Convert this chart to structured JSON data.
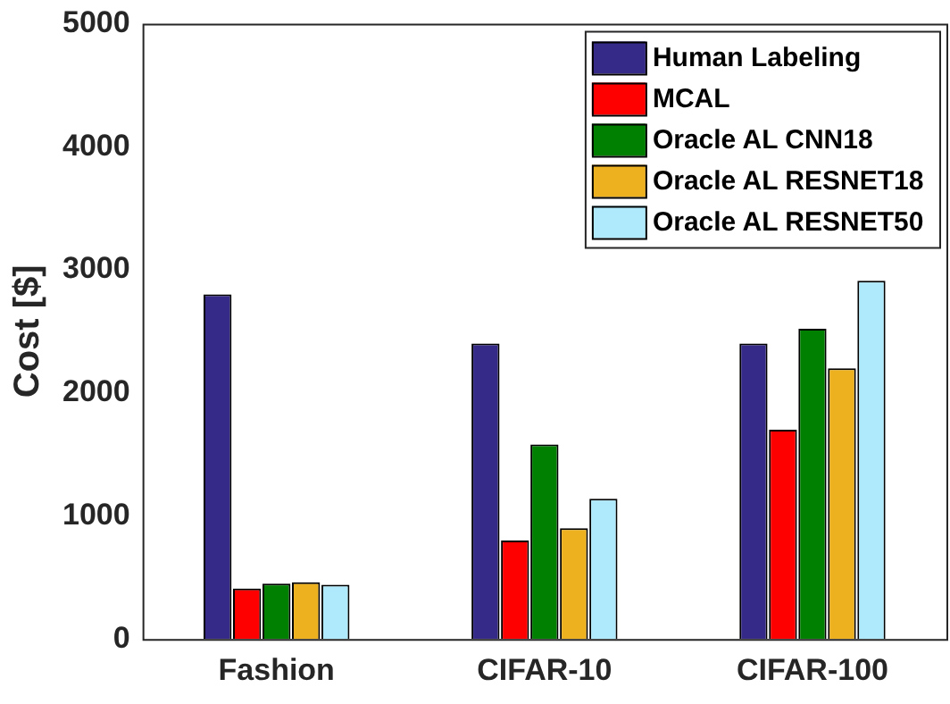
{
  "chart_data": {
    "type": "bar",
    "ylabel": "Cost [$]",
    "categories": [
      "Fashion",
      "CIFAR-10",
      "CIFAR-100"
    ],
    "series": [
      {
        "name": "Human Labeling",
        "color": "#352a87",
        "values": [
          2800,
          2400,
          2400
        ]
      },
      {
        "name": "MCAL",
        "color": "#ff0000",
        "values": [
          410,
          800,
          1700
        ]
      },
      {
        "name": "Oracle AL CNN18",
        "color": "#008000",
        "values": [
          450,
          1580,
          2520
        ]
      },
      {
        "name": "Oracle AL RESNET18",
        "color": "#edb120",
        "values": [
          460,
          900,
          2200
        ]
      },
      {
        "name": "Oracle AL RESNET50",
        "color": "#aeeafb",
        "values": [
          440,
          1140,
          2910
        ]
      }
    ],
    "ylim": [
      0,
      5000
    ],
    "yticks": [
      0,
      1000,
      2000,
      3000,
      4000,
      5000
    ],
    "grid": false,
    "legend": "top right"
  }
}
